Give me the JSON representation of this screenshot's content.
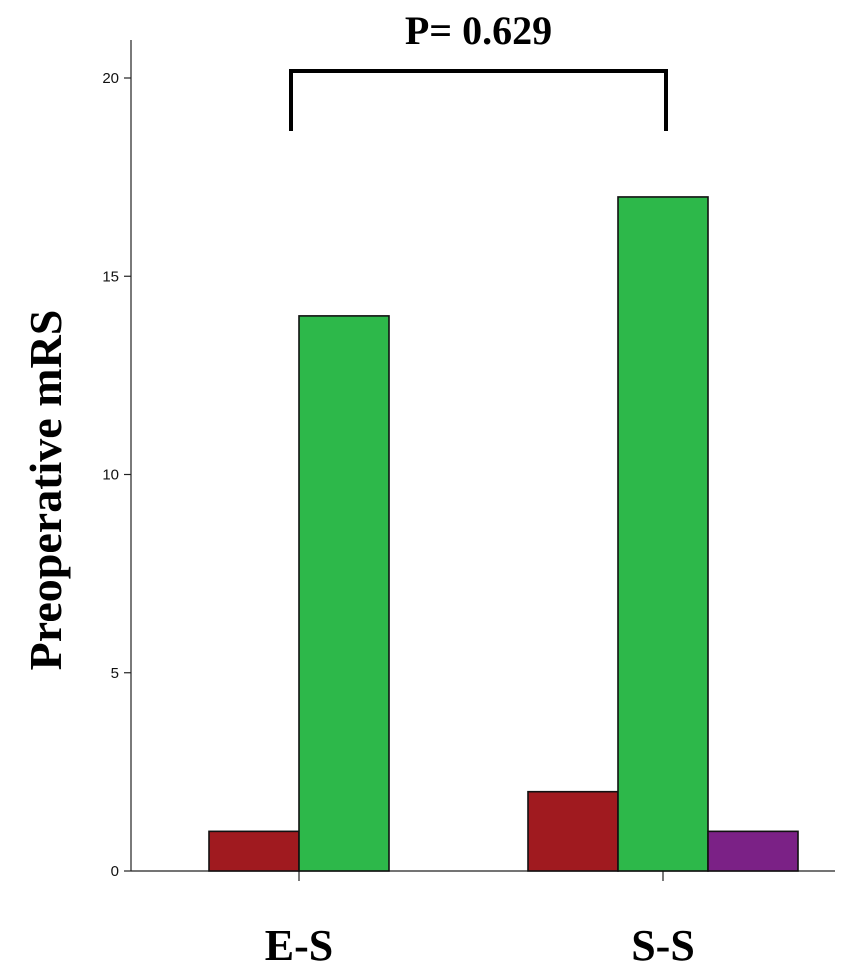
{
  "chart_data": {
    "type": "bar",
    "title": "",
    "xlabel": "",
    "ylabel": "Preoperative mRS",
    "categories": [
      "E-S",
      "S-S"
    ],
    "series": [
      {
        "values": [
          1,
          2
        ],
        "color": "#a01a1f"
      },
      {
        "values": [
          14,
          17
        ],
        "color": "#2db84a"
      },
      {
        "values": [
          0,
          1
        ],
        "color": "#7b2186"
      }
    ],
    "ylim": [
      0,
      20
    ],
    "yticks": [
      0,
      5,
      10,
      15,
      20
    ],
    "grid": false,
    "legend": "none",
    "annotation": {
      "text": "P= 0.629",
      "between": [
        "E-S",
        "S-S"
      ]
    }
  }
}
